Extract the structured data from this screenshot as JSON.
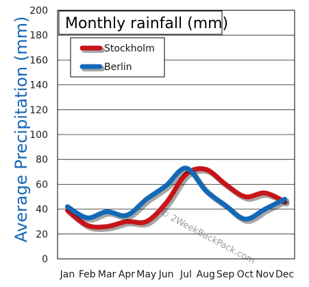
{
  "chart_data": {
    "type": "line",
    "title": "Monthly rainfall (mm)",
    "xlabel": "",
    "ylabel": "Average Precipitation (mm)",
    "categories": [
      "Jan",
      "Feb",
      "Mar",
      "Apr",
      "May",
      "Jun",
      "Jul",
      "Aug",
      "Sep",
      "Oct",
      "Nov",
      "Dec"
    ],
    "ylim": [
      0,
      200
    ],
    "yticks": [
      0,
      20,
      40,
      60,
      80,
      100,
      120,
      140,
      160,
      180,
      200
    ],
    "grid": true,
    "legend": "top-left",
    "series": [
      {
        "name": "Stockholm",
        "color": "#c81418",
        "values": [
          39,
          27,
          26,
          30,
          30,
          45,
          68,
          72,
          60,
          50,
          53,
          46
        ]
      },
      {
        "name": "Berlin",
        "color": "#1269b6",
        "values": [
          42,
          33,
          38,
          35,
          48,
          59,
          73,
          55,
          43,
          32,
          40,
          48
        ]
      }
    ],
    "watermark": "© 2WeekBackPack.com"
  }
}
